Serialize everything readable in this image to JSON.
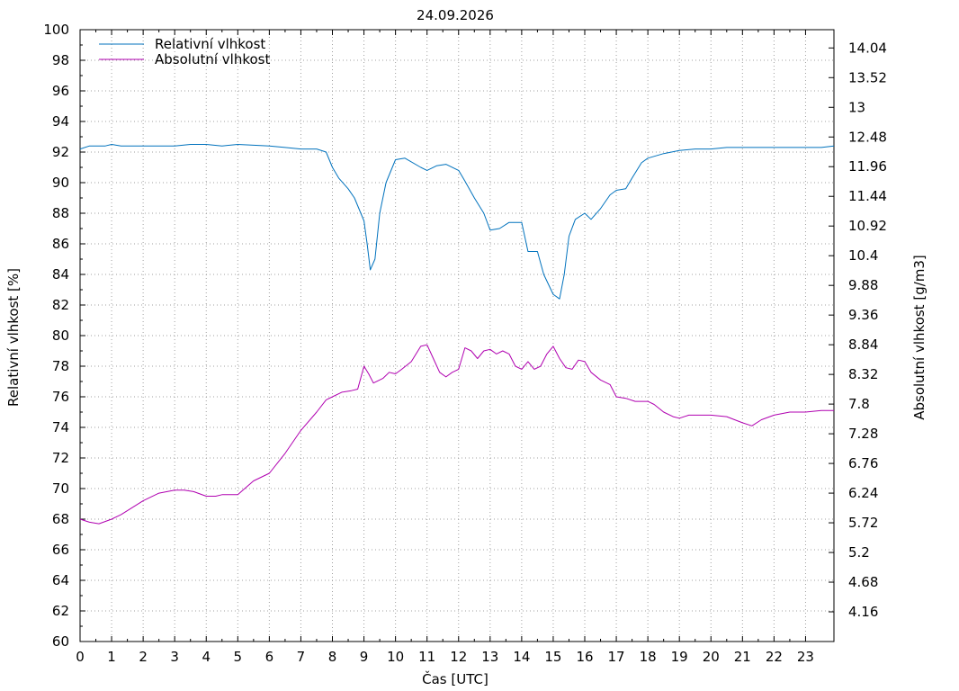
{
  "chart_data": {
    "type": "line",
    "title": "24.09.2026",
    "xlabel": "Čas [UTC]",
    "ylabel_left": "Relativní vlhkost [%]",
    "ylabel_right": "Absolutní vlhkost [g/m3]",
    "xlim": [
      0,
      23.9
    ],
    "ylim_left": [
      60,
      100
    ],
    "ylim_right": [
      3.64,
      14.36
    ],
    "x_ticks": [
      0,
      1,
      2,
      3,
      4,
      5,
      6,
      7,
      8,
      9,
      10,
      11,
      12,
      13,
      14,
      15,
      16,
      17,
      18,
      19,
      20,
      21,
      22,
      23
    ],
    "y_ticks_left": [
      60,
      62,
      64,
      66,
      68,
      70,
      72,
      74,
      76,
      78,
      80,
      82,
      84,
      86,
      88,
      90,
      92,
      94,
      96,
      98,
      100
    ],
    "y_ticks_right": [
      "4.16",
      "4.68",
      "5.2",
      "5.72",
      "6.24",
      "6.76",
      "7.28",
      "7.8",
      "8.32",
      "8.84",
      "9.36",
      "9.88",
      "10.4",
      "10.92",
      "11.44",
      "11.96",
      "12.48",
      "13",
      "13.52",
      "14.04"
    ],
    "grid": true,
    "legend_position": "top-left",
    "series": [
      {
        "name": "Relativní vlhkost",
        "color": "#0072bd",
        "axis": "left",
        "x": [
          0,
          0.3,
          0.8,
          1.0,
          1.3,
          2.0,
          3.0,
          3.5,
          4.0,
          4.5,
          5.0,
          6.0,
          6.5,
          7.0,
          7.5,
          7.8,
          8.0,
          8.2,
          8.5,
          8.7,
          9.0,
          9.1,
          9.2,
          9.35,
          9.5,
          9.7,
          10.0,
          10.3,
          10.8,
          11.0,
          11.3,
          11.6,
          12.0,
          12.2,
          12.5,
          12.8,
          13.0,
          13.3,
          13.6,
          14.0,
          14.2,
          14.5,
          14.7,
          15.0,
          15.2,
          15.35,
          15.5,
          15.7,
          16.0,
          16.2,
          16.5,
          16.8,
          17.0,
          17.3,
          17.5,
          17.8,
          18.0,
          18.5,
          19.0,
          19.5,
          20.0,
          20.5,
          21.0,
          21.5,
          22.0,
          22.5,
          23.0,
          23.5,
          23.9
        ],
        "y": [
          92.2,
          92.4,
          92.4,
          92.5,
          92.4,
          92.4,
          92.4,
          92.5,
          92.5,
          92.4,
          92.5,
          92.4,
          92.3,
          92.2,
          92.2,
          92.0,
          91.0,
          90.3,
          89.6,
          89.0,
          87.5,
          86.0,
          84.3,
          85.0,
          88.0,
          90.0,
          91.5,
          91.6,
          91.0,
          90.8,
          91.1,
          91.2,
          90.8,
          90.1,
          89.0,
          88.0,
          86.9,
          87.0,
          87.4,
          87.4,
          85.5,
          85.5,
          84.0,
          82.7,
          82.4,
          84.0,
          86.5,
          87.6,
          88.0,
          87.6,
          88.3,
          89.2,
          89.5,
          89.6,
          90.3,
          91.3,
          91.6,
          91.9,
          92.1,
          92.2,
          92.2,
          92.3,
          92.3,
          92.3,
          92.3,
          92.3,
          92.3,
          92.3,
          92.4
        ]
      },
      {
        "name": "Absolutní vlhkost",
        "color": "#b000b0",
        "axis": "left",
        "x": [
          0,
          0.3,
          0.6,
          1.0,
          1.3,
          2.0,
          2.5,
          3.0,
          3.3,
          3.6,
          4.0,
          4.3,
          4.5,
          5.0,
          5.5,
          6.0,
          6.5,
          7.0,
          7.5,
          7.8,
          8.0,
          8.3,
          8.6,
          8.8,
          9.0,
          9.15,
          9.3,
          9.6,
          9.8,
          10.0,
          10.2,
          10.5,
          10.8,
          11.0,
          11.2,
          11.4,
          11.6,
          11.8,
          12.0,
          12.2,
          12.4,
          12.6,
          12.8,
          13.0,
          13.2,
          13.4,
          13.6,
          13.8,
          14.0,
          14.2,
          14.4,
          14.6,
          14.8,
          15.0,
          15.2,
          15.4,
          15.6,
          15.8,
          16.0,
          16.2,
          16.5,
          16.8,
          17.0,
          17.3,
          17.6,
          18.0,
          18.2,
          18.5,
          18.8,
          19.0,
          19.3,
          19.6,
          20.0,
          20.5,
          21.0,
          21.3,
          21.6,
          22.0,
          22.5,
          23.0,
          23.5,
          23.9
        ],
        "y": [
          68.0,
          67.8,
          67.7,
          68.0,
          68.3,
          69.2,
          69.7,
          69.9,
          69.9,
          69.8,
          69.5,
          69.5,
          69.6,
          69.6,
          70.5,
          71.0,
          72.3,
          73.8,
          75.0,
          75.8,
          76.0,
          76.3,
          76.4,
          76.5,
          78.0,
          77.5,
          76.9,
          77.2,
          77.6,
          77.5,
          77.8,
          78.3,
          79.3,
          79.4,
          78.5,
          77.6,
          77.3,
          77.6,
          77.8,
          79.2,
          79.0,
          78.5,
          79.0,
          79.1,
          78.8,
          79.0,
          78.8,
          78.0,
          77.8,
          78.3,
          77.8,
          78.0,
          78.8,
          79.3,
          78.5,
          77.9,
          77.8,
          78.4,
          78.3,
          77.6,
          77.1,
          76.8,
          76.0,
          75.9,
          75.7,
          75.7,
          75.5,
          75.0,
          74.7,
          74.6,
          74.8,
          74.8,
          74.8,
          74.7,
          74.3,
          74.1,
          74.5,
          74.8,
          75.0,
          75.0,
          75.1,
          75.1
        ]
      }
    ]
  }
}
